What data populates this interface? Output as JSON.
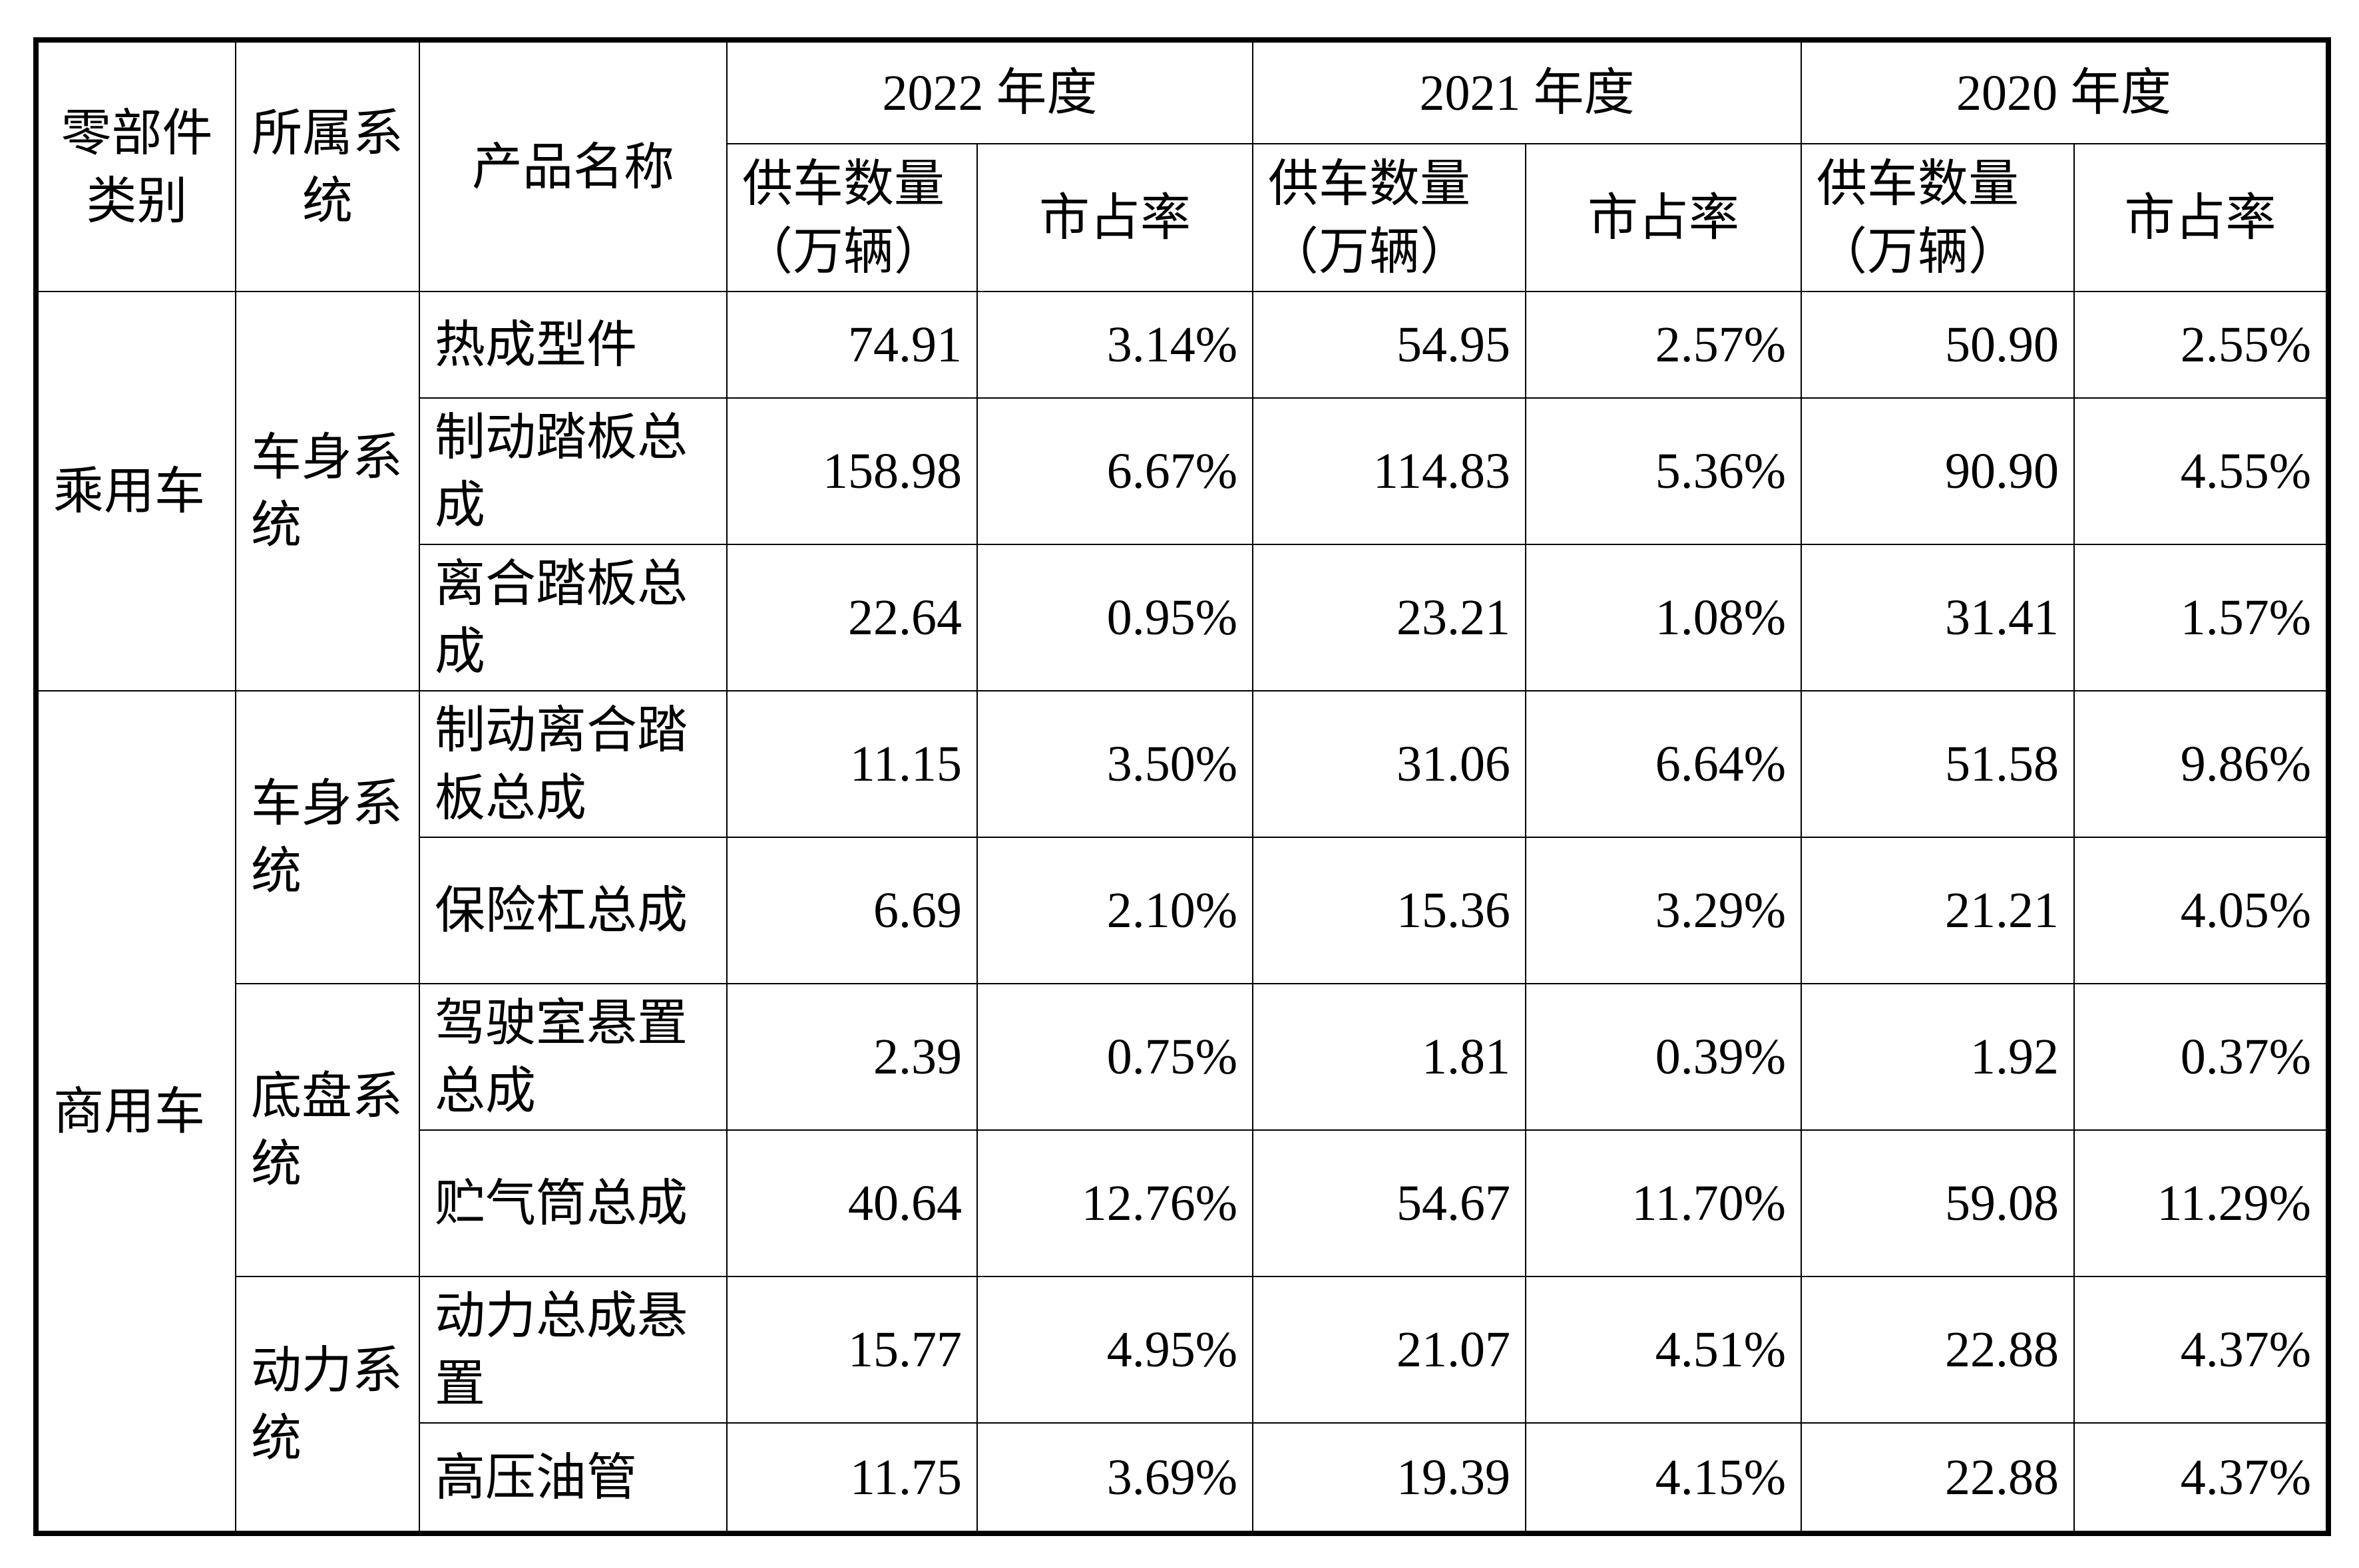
{
  "header": {
    "category": "零部件类别",
    "system": "所属系统",
    "product": "产品名称",
    "years": [
      "2022 年度",
      "2021 年度",
      "2020 年度"
    ],
    "volume": "供车数量（万辆）",
    "share": "市占率"
  },
  "rows": [
    {
      "category": "乘用车",
      "system": "车身系统",
      "product": "热成型件",
      "v2022": "74.91",
      "s2022": "3.14%",
      "v2021": "54.95",
      "s2021": "2.57%",
      "v2020": "50.90",
      "s2020": "2.55%"
    },
    {
      "product": "制动踏板总成",
      "v2022": "158.98",
      "s2022": "6.67%",
      "v2021": "114.83",
      "s2021": "5.36%",
      "v2020": "90.90",
      "s2020": "4.55%"
    },
    {
      "product": "离合踏板总成",
      "v2022": "22.64",
      "s2022": "0.95%",
      "v2021": "23.21",
      "s2021": "1.08%",
      "v2020": "31.41",
      "s2020": "1.57%"
    },
    {
      "category": "商用车",
      "system": "车身系统",
      "product": "制动离合踏板总成",
      "v2022": "11.15",
      "s2022": "3.50%",
      "v2021": "31.06",
      "s2021": "6.64%",
      "v2020": "51.58",
      "s2020": "9.86%"
    },
    {
      "product": "保险杠总成",
      "v2022": "6.69",
      "s2022": "2.10%",
      "v2021": "15.36",
      "s2021": "3.29%",
      "v2020": "21.21",
      "s2020": "4.05%"
    },
    {
      "system": "底盘系统",
      "product": "驾驶室悬置总成",
      "v2022": "2.39",
      "s2022": "0.75%",
      "v2021": "1.81",
      "s2021": "0.39%",
      "v2020": "1.92",
      "s2020": "0.37%"
    },
    {
      "product": "贮气筒总成",
      "v2022": "40.64",
      "s2022": "12.76%",
      "v2021": "54.67",
      "s2021": "11.70%",
      "v2020": "59.08",
      "s2020": "11.29%"
    },
    {
      "system": "动力系统",
      "product": "动力总成悬置",
      "v2022": "15.77",
      "s2022": "4.95%",
      "v2021": "21.07",
      "s2021": "4.51%",
      "v2020": "22.88",
      "s2020": "4.37%"
    },
    {
      "product": "高压油管",
      "v2022": "11.75",
      "s2022": "3.69%",
      "v2021": "19.39",
      "s2021": "4.15%",
      "v2020": "22.88",
      "s2020": "4.37%"
    }
  ]
}
